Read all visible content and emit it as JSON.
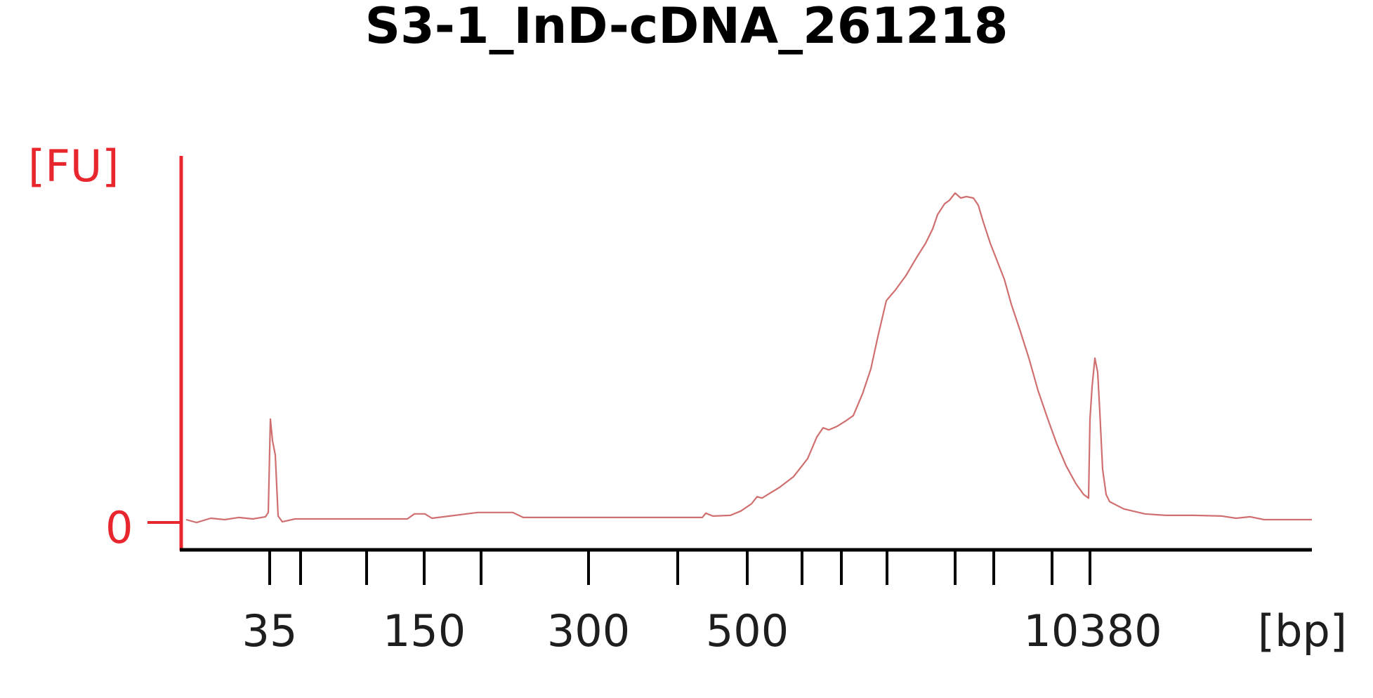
{
  "chart_data": {
    "type": "line",
    "title": "S3-1_InD-cDNA_261218",
    "xlabel": "[bp]",
    "ylabel": "[FU]",
    "x_scale": "ladder (non-linear)",
    "x_tick_labels": [
      "35",
      "150",
      "300",
      "500",
      "10380"
    ],
    "y_tick_labels": [
      "0"
    ],
    "ylim": [
      -4,
      50
    ],
    "grid": false,
    "legend": "none",
    "series": [
      {
        "x": [
          "lower marker (35)",
          "peak max (between 500 and 10380)",
          "upper marker (10380)"
        ],
        "values": [
          14,
          45,
          23
        ]
      }
    ],
    "colors": {
      "trace": "#d06f6f",
      "y_axis": "#e8262e",
      "x_axis": "#000000"
    }
  }
}
